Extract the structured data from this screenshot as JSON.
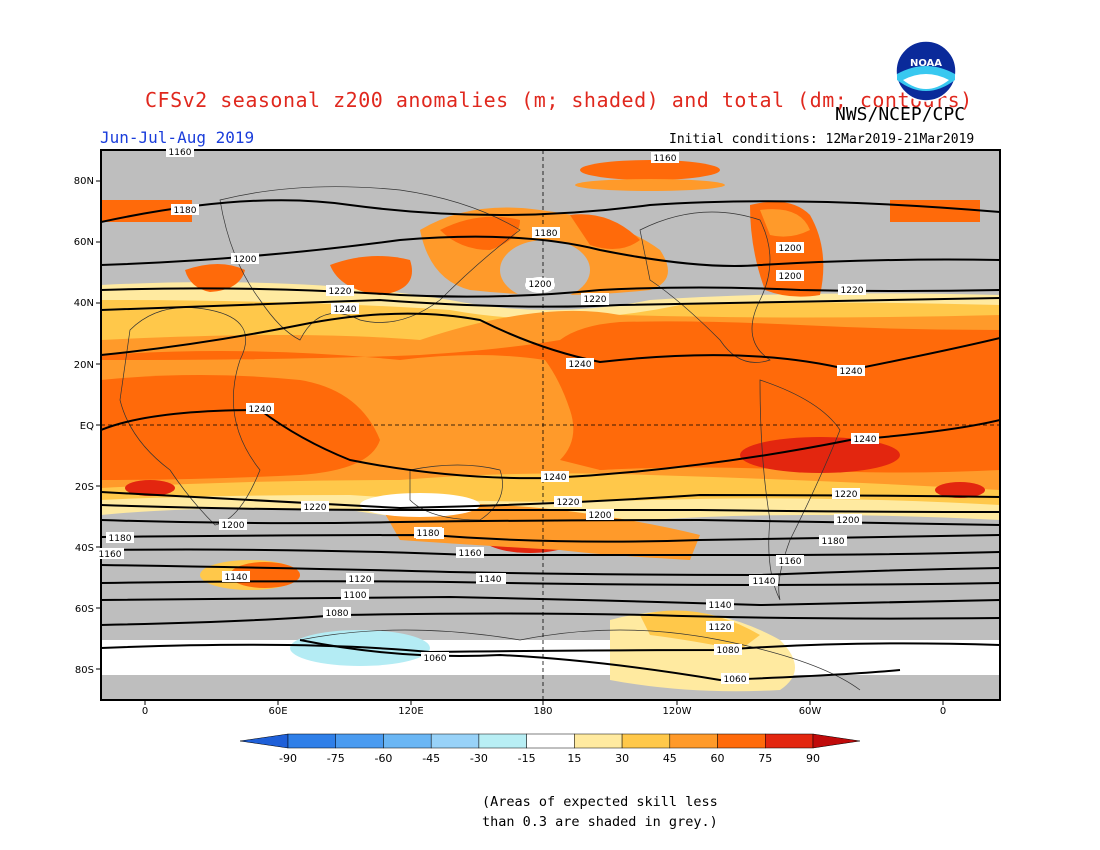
{
  "header": {
    "title": "CFSv2 seasonal z200 anomalies (m; shaded) and total (dm; contours)",
    "agency": "NWS/NCEP/CPC",
    "season": "Jun-Jul-Aug 2019",
    "initial_conditions": "Initial conditions: 12Mar2019-21Mar2019",
    "logo_text": "NOAA"
  },
  "map": {
    "lat_labels": [
      "80N",
      "60N",
      "40N",
      "20N",
      "EQ",
      "20S",
      "40S",
      "60S",
      "80S"
    ],
    "lon_labels": [
      "0",
      "60E",
      "120E",
      "180",
      "120W",
      "60W",
      "0"
    ],
    "contour_labels": [
      "1160",
      "1180",
      "1200",
      "1220",
      "1240",
      "1240",
      "1220",
      "1200",
      "1180",
      "1160",
      "1140",
      "1120",
      "1100",
      "1080",
      "1060",
      "1180",
      "1200",
      "1220",
      "1240",
      "1240",
      "1220",
      "1200",
      "1180",
      "1160",
      "1140",
      "1120",
      "1100",
      "1080",
      "1060",
      "1160",
      "1180",
      "1200",
      "1220",
      "1240",
      "1240",
      "1220",
      "1200",
      "1180",
      "1160",
      "1140",
      "1180",
      "1160",
      "1140",
      "1160",
      "1080",
      "1060",
      "1200",
      "1220",
      "1240",
      "1220"
    ],
    "colors": {
      "grey": "#bebebe",
      "light_yellow": "#ffeaa0",
      "yellow_orange": "#ffc84a",
      "orange": "#ff9a2a",
      "dark_orange": "#ff6a0a",
      "red": "#e3260f",
      "dark_red": "#c00a0a",
      "light_cyan": "#b4ecf4"
    }
  },
  "colorbar": {
    "ticks": [
      "-90",
      "-75",
      "-60",
      "-45",
      "-30",
      "-15",
      "15",
      "30",
      "45",
      "60",
      "75",
      "90"
    ],
    "colors": [
      "#1e5fd8",
      "#2f7fe8",
      "#4a9bf0",
      "#6ab6f4",
      "#98d2f8",
      "#b8eef4",
      "#ffffff",
      "#ffeaa0",
      "#ffc84a",
      "#ff9a2a",
      "#ff6a0a",
      "#e3260f",
      "#c00a0a"
    ]
  },
  "note": {
    "line1": "(Areas of expected skill less",
    "line2": "than 0.3 are shaded in grey.)"
  }
}
